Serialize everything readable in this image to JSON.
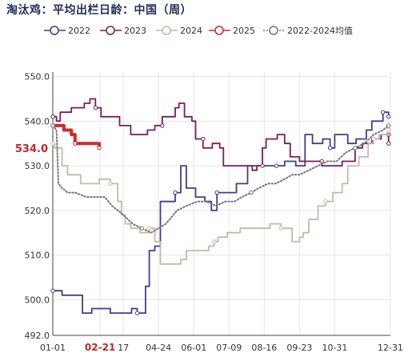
{
  "title": "淘汰鸡：平均出栏日龄：中国（周）",
  "chart_data": {
    "type": "line",
    "ylim": [
      492,
      551
    ],
    "y_ticks": [
      492.0,
      500.0,
      510.0,
      520.0,
      530.0,
      540.0,
      550.0
    ],
    "x_tick_labels": [
      "01-01",
      "02-21",
      "17",
      "04-24",
      "06-01",
      "07-09",
      "08-16",
      "09-23",
      "10-31",
      "12-31"
    ],
    "x_tick_days": [
      0,
      51,
      76,
      114,
      152,
      190,
      228,
      266,
      304,
      364
    ],
    "grid": true,
    "legend_position": "top",
    "highlight_x_label": "02-21",
    "highlight_x_color": "#c0272d",
    "last_value_label": "534.0",
    "last_value": 534.0,
    "series": [
      {
        "name": "2022",
        "color": "#3f3d8f",
        "style": "solid",
        "points": [
          [
            0,
            502
          ],
          [
            10,
            502
          ],
          [
            10,
            501
          ],
          [
            32,
            501
          ],
          [
            32,
            497
          ],
          [
            42,
            497
          ],
          [
            42,
            498
          ],
          [
            62,
            498
          ],
          [
            62,
            497
          ],
          [
            85,
            497
          ],
          [
            85,
            498
          ],
          [
            91,
            498
          ],
          [
            91,
            497
          ],
          [
            100,
            497
          ],
          [
            100,
            503
          ],
          [
            104,
            503
          ],
          [
            104,
            511
          ],
          [
            110,
            511
          ],
          [
            110,
            512
          ],
          [
            116,
            512
          ],
          [
            116,
            522
          ],
          [
            124,
            522
          ],
          [
            124,
            522
          ],
          [
            132,
            522
          ],
          [
            132,
            524
          ],
          [
            138,
            524
          ],
          [
            138,
            530
          ],
          [
            144,
            530
          ],
          [
            144,
            525
          ],
          [
            154,
            525
          ],
          [
            154,
            523
          ],
          [
            164,
            523
          ],
          [
            164,
            522
          ],
          [
            171,
            522
          ],
          [
            171,
            520
          ],
          [
            177,
            520
          ],
          [
            177,
            524
          ],
          [
            192,
            524
          ],
          [
            192,
            524
          ],
          [
            198,
            524
          ],
          [
            198,
            526
          ],
          [
            210,
            526
          ],
          [
            210,
            530
          ],
          [
            226,
            530
          ],
          [
            226,
            530
          ],
          [
            234,
            530
          ],
          [
            234,
            530
          ],
          [
            241,
            530
          ],
          [
            241,
            530
          ],
          [
            250,
            530
          ],
          [
            250,
            531
          ],
          [
            262,
            531
          ],
          [
            262,
            530
          ],
          [
            272,
            530
          ],
          [
            272,
            537
          ],
          [
            280,
            537
          ],
          [
            280,
            535
          ],
          [
            291,
            535
          ],
          [
            291,
            536
          ],
          [
            299,
            536
          ],
          [
            299,
            534
          ],
          [
            304,
            534
          ],
          [
            304,
            537
          ],
          [
            318,
            537
          ],
          [
            318,
            535
          ],
          [
            327,
            535
          ],
          [
            327,
            536
          ],
          [
            338,
            536
          ],
          [
            338,
            538
          ],
          [
            344,
            538
          ],
          [
            344,
            540
          ],
          [
            356,
            540
          ],
          [
            356,
            542
          ],
          [
            362,
            542
          ],
          [
            362,
            541
          ]
        ]
      },
      {
        "name": "2023",
        "color": "#7d1c58",
        "style": "solid",
        "points": [
          [
            0,
            541
          ],
          [
            4,
            541
          ],
          [
            4,
            540
          ],
          [
            8,
            540
          ],
          [
            8,
            542
          ],
          [
            20,
            542
          ],
          [
            20,
            543
          ],
          [
            34,
            543
          ],
          [
            34,
            544
          ],
          [
            40,
            544
          ],
          [
            40,
            545
          ],
          [
            46,
            545
          ],
          [
            46,
            543
          ],
          [
            52,
            543
          ],
          [
            52,
            541
          ],
          [
            72,
            541
          ],
          [
            72,
            539
          ],
          [
            84,
            539
          ],
          [
            84,
            538
          ],
          [
            84,
            537
          ],
          [
            102,
            537
          ],
          [
            102,
            538
          ],
          [
            110,
            538
          ],
          [
            110,
            539
          ],
          [
            118,
            539
          ],
          [
            118,
            541
          ],
          [
            132,
            541
          ],
          [
            132,
            543
          ],
          [
            136,
            543
          ],
          [
            136,
            544
          ],
          [
            142,
            544
          ],
          [
            142,
            541
          ],
          [
            150,
            541
          ],
          [
            150,
            540
          ],
          [
            154,
            540
          ],
          [
            154,
            536
          ],
          [
            162,
            536
          ],
          [
            162,
            534
          ],
          [
            172,
            534
          ],
          [
            172,
            535
          ],
          [
            180,
            535
          ],
          [
            180,
            534
          ],
          [
            184,
            534
          ],
          [
            184,
            530
          ],
          [
            215,
            530
          ],
          [
            215,
            529
          ],
          [
            220,
            529
          ],
          [
            220,
            530
          ],
          [
            226,
            530
          ],
          [
            226,
            534
          ],
          [
            230,
            534
          ],
          [
            230,
            536
          ],
          [
            242,
            536
          ],
          [
            242,
            537
          ],
          [
            250,
            537
          ],
          [
            250,
            535
          ],
          [
            256,
            535
          ],
          [
            256,
            532
          ],
          [
            266,
            532
          ],
          [
            266,
            531
          ],
          [
            290,
            531
          ],
          [
            290,
            530
          ],
          [
            312,
            530
          ],
          [
            312,
            531
          ],
          [
            326,
            531
          ],
          [
            326,
            534
          ],
          [
            334,
            534
          ],
          [
            334,
            535
          ],
          [
            344,
            535
          ],
          [
            344,
            536
          ],
          [
            354,
            536
          ],
          [
            354,
            537
          ],
          [
            362,
            537
          ],
          [
            362,
            535
          ]
        ]
      },
      {
        "name": "2024",
        "color": "#c6b8a8",
        "style": "solid",
        "points": [
          [
            0,
            535
          ],
          [
            2,
            535
          ],
          [
            2,
            534
          ],
          [
            10,
            534
          ],
          [
            10,
            530
          ],
          [
            16,
            530
          ],
          [
            16,
            528
          ],
          [
            30,
            528
          ],
          [
            30,
            526
          ],
          [
            50,
            526
          ],
          [
            50,
            527
          ],
          [
            62,
            527
          ],
          [
            62,
            526
          ],
          [
            70,
            526
          ],
          [
            70,
            522
          ],
          [
            74,
            522
          ],
          [
            74,
            519
          ],
          [
            78,
            519
          ],
          [
            78,
            517
          ],
          [
            84,
            517
          ],
          [
            84,
            516
          ],
          [
            94,
            516
          ],
          [
            94,
            515
          ],
          [
            104,
            515
          ],
          [
            104,
            516
          ],
          [
            110,
            516
          ],
          [
            110,
            513
          ],
          [
            116,
            513
          ],
          [
            116,
            508
          ],
          [
            138,
            508
          ],
          [
            138,
            509
          ],
          [
            144,
            509
          ],
          [
            144,
            511
          ],
          [
            168,
            511
          ],
          [
            168,
            512
          ],
          [
            174,
            512
          ],
          [
            174,
            513
          ],
          [
            178,
            513
          ],
          [
            178,
            514
          ],
          [
            188,
            514
          ],
          [
            188,
            515
          ],
          [
            202,
            515
          ],
          [
            202,
            516
          ],
          [
            212,
            516
          ],
          [
            212,
            516
          ],
          [
            234,
            516
          ],
          [
            234,
            517
          ],
          [
            246,
            517
          ],
          [
            246,
            516
          ],
          [
            258,
            516
          ],
          [
            258,
            513
          ],
          [
            266,
            513
          ],
          [
            266,
            514
          ],
          [
            270,
            514
          ],
          [
            270,
            515
          ],
          [
            276,
            515
          ],
          [
            276,
            518
          ],
          [
            286,
            518
          ],
          [
            286,
            521
          ],
          [
            294,
            521
          ],
          [
            294,
            522
          ],
          [
            302,
            522
          ],
          [
            302,
            524
          ],
          [
            312,
            524
          ],
          [
            312,
            526
          ],
          [
            318,
            526
          ],
          [
            318,
            530
          ],
          [
            330,
            530
          ],
          [
            330,
            532
          ],
          [
            340,
            532
          ],
          [
            340,
            535
          ],
          [
            346,
            535
          ],
          [
            346,
            536
          ],
          [
            352,
            536
          ],
          [
            352,
            537
          ],
          [
            362,
            537
          ],
          [
            362,
            538
          ]
        ]
      },
      {
        "name": "2025",
        "color": "#d0282e",
        "style": "thick",
        "points": [
          [
            0,
            539
          ],
          [
            12,
            539
          ],
          [
            12,
            538
          ],
          [
            20,
            538
          ],
          [
            20,
            537
          ],
          [
            24,
            537
          ],
          [
            24,
            535
          ],
          [
            40,
            535
          ],
          [
            40,
            535
          ],
          [
            50,
            535
          ],
          [
            50,
            534
          ]
        ]
      },
      {
        "name": "2022-2024均值",
        "color": "#777777",
        "style": "dotted",
        "points": [
          [
            0,
            539
          ],
          [
            4,
            538
          ],
          [
            6,
            526
          ],
          [
            10,
            525
          ],
          [
            16,
            524
          ],
          [
            24,
            524
          ],
          [
            36,
            523
          ],
          [
            46,
            523
          ],
          [
            56,
            523
          ],
          [
            64,
            521
          ],
          [
            76,
            519
          ],
          [
            86,
            517
          ],
          [
            96,
            516
          ],
          [
            106,
            515
          ],
          [
            114,
            516
          ],
          [
            122,
            517
          ],
          [
            134,
            520
          ],
          [
            144,
            521
          ],
          [
            156,
            522
          ],
          [
            166,
            522
          ],
          [
            176,
            521
          ],
          [
            186,
            522
          ],
          [
            196,
            522
          ],
          [
            204,
            523
          ],
          [
            214,
            524
          ],
          [
            222,
            525
          ],
          [
            232,
            526
          ],
          [
            240,
            526
          ],
          [
            250,
            527
          ],
          [
            258,
            528
          ],
          [
            266,
            528
          ],
          [
            276,
            529
          ],
          [
            286,
            530
          ],
          [
            296,
            531
          ],
          [
            306,
            531
          ],
          [
            316,
            533
          ],
          [
            326,
            534
          ],
          [
            336,
            535
          ],
          [
            346,
            537
          ],
          [
            356,
            538
          ],
          [
            362,
            539
          ]
        ]
      }
    ]
  }
}
